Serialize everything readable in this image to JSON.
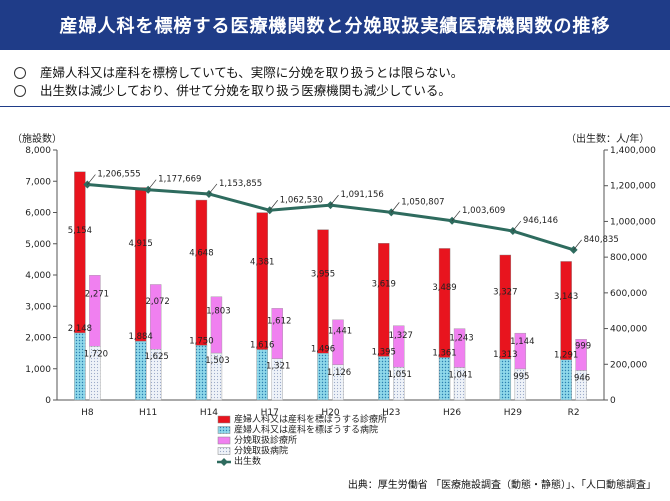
{
  "title": "産婦人科を標榜する医療機関数と分娩取扱実績医療機関数の推移",
  "notes": [
    "産婦人科又は産科を標榜していても、実際に分娩を取り扱うとは限らない。",
    "出生数は減少しており、併せて分娩を取り扱う医療機関も減少している。"
  ],
  "source": "出典：厚生労働省 「医療施設調査（動態・静態）」、「人口動態調査」",
  "chart_data": {
    "type": "bar",
    "categories": [
      "H8",
      "H11",
      "H14",
      "H17",
      "H20",
      "H23",
      "H26",
      "H29",
      "R2"
    ],
    "ylabel_left": "（施設数）",
    "ylabel_right": "（出生数：人/年）",
    "ylim_left": [
      0,
      8000
    ],
    "ylim_right": [
      0,
      1400000
    ],
    "yticks_left": [
      "0",
      "1,000",
      "2,000",
      "3,000",
      "4,000",
      "5,000",
      "6,000",
      "7,000",
      "8,000"
    ],
    "yticks_right": [
      "0",
      "200,000",
      "400,000",
      "600,000",
      "800,000",
      "1,000,000",
      "1,200,000",
      "1,400,000"
    ],
    "stack_series": [
      {
        "name": "産婦人科又は産科を標ぼうする病院",
        "color": "#7fd3e8",
        "values": [
          2148,
          1884,
          1750,
          1616,
          1496,
          1395,
          1361,
          1313,
          1291
        ],
        "labels": [
          "2,148",
          "1,884",
          "1,750",
          "1,616",
          "1,496",
          "1,395",
          "1,361",
          "1,313",
          "1,291"
        ]
      },
      {
        "name": "産婦人科又は産科を標ぼうする診療所",
        "color": "#e8141e",
        "values": [
          5154,
          4915,
          4648,
          4381,
          3955,
          3619,
          3489,
          3327,
          3143
        ],
        "labels": [
          "5,154",
          "4,915",
          "4,648",
          "4,381",
          "3,955",
          "3,619",
          "3,489",
          "3,327",
          "3,143"
        ]
      }
    ],
    "second_stack_series": [
      {
        "name": "分娩取扱病院",
        "color": "#e6ecf5",
        "values": [
          1720,
          1625,
          1503,
          1321,
          1126,
          1051,
          1041,
          995,
          946
        ],
        "labels": [
          "1,720",
          "1,625",
          "1,503",
          "1,321",
          "1,126",
          "1,051",
          "1,041",
          "995",
          "946"
        ]
      },
      {
        "name": "分娩取扱診療所",
        "color": "#f080f0",
        "values": [
          2271,
          2072,
          1803,
          1612,
          1441,
          1327,
          1243,
          1144,
          999
        ],
        "labels": [
          "2,271",
          "2,072",
          "1,803",
          "1,612",
          "1,441",
          "1,327",
          "1,243",
          "1,144",
          "999"
        ]
      }
    ],
    "line_series": {
      "name": "出生数",
      "color": "#2e6b5e",
      "values": [
        1206555,
        1177669,
        1153855,
        1062530,
        1091156,
        1050807,
        1003609,
        946146,
        840835
      ],
      "labels": [
        "1,206,555",
        "1,177,669",
        "1,153,855",
        "1,062,530",
        "1,091,156",
        "1,050,807",
        "1,003,609",
        "946,146",
        "840,835"
      ]
    },
    "legend": [
      {
        "name": "産婦人科又は産科を標ぼうする診療所",
        "color": "#e8141e",
        "kind": "rect"
      },
      {
        "name": "産婦人科又は産科を標ぼうする病院",
        "color": "#7fd3e8",
        "kind": "rect"
      },
      {
        "name": "分娩取扱診療所",
        "color": "#f080f0",
        "kind": "rect"
      },
      {
        "name": "分娩取扱病院",
        "color": "#e6ecf5",
        "kind": "rect"
      },
      {
        "name": "出生数",
        "color": "#2e6b5e",
        "kind": "line"
      }
    ],
    "legend_position": "bottom-center",
    "grid": false
  }
}
